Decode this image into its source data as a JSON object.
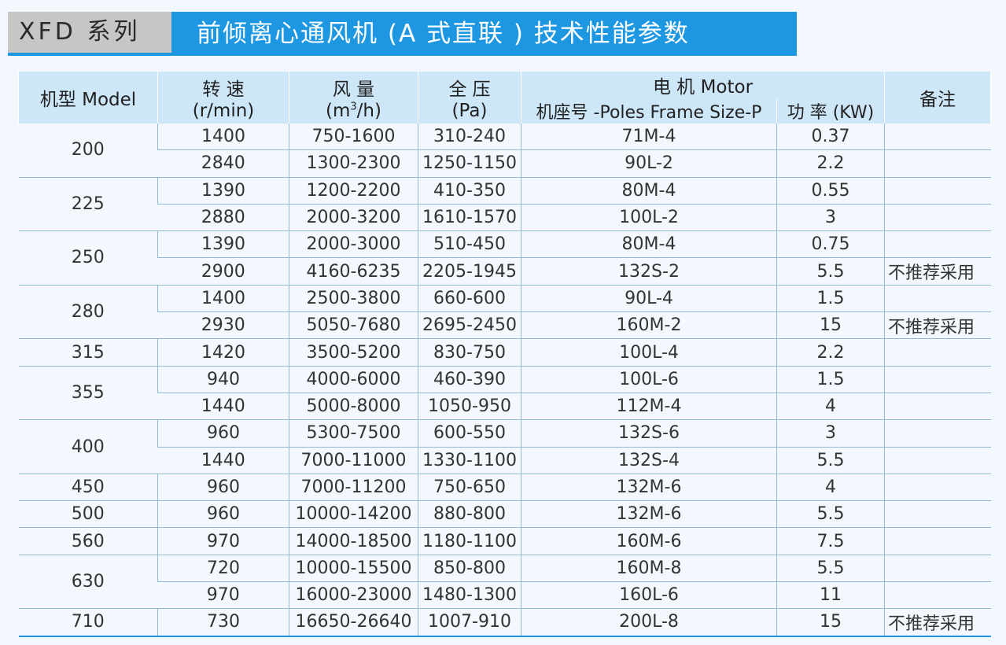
{
  "header": {
    "series": "XFD 系列",
    "title": "前倾离心通风机 (A 式直联 ) 技术性能参数"
  },
  "colors": {
    "accent": "#1e97e3",
    "header_bg": "#cde6f8",
    "series_bg": "#c6c6c6"
  },
  "table": {
    "headers": {
      "model": "机型 Model",
      "speed": "转 速",
      "speed_unit": "(r/min)",
      "flow": "风 量",
      "flow_unit_pre": "(m",
      "flow_unit_sup": "3",
      "flow_unit_post": "/h)",
      "pressure": "全 压",
      "pressure_unit": "(Pa)",
      "motor": "电 机 Motor",
      "frame": "机座号 -Poles Frame Size-P",
      "power": "功 率 (KW)",
      "note": "备注"
    },
    "groups": [
      {
        "model": "200",
        "rows": [
          {
            "speed": "1400",
            "flow": "750-1600",
            "pressure": "310-240",
            "frame": "71M-4",
            "power": "0.37",
            "note": ""
          },
          {
            "speed": "2840",
            "flow": "1300-2300",
            "pressure": "1250-1150",
            "frame": "90L-2",
            "power": "2.2",
            "note": ""
          }
        ]
      },
      {
        "model": "225",
        "rows": [
          {
            "speed": "1390",
            "flow": "1200-2200",
            "pressure": "410-350",
            "frame": "80M-4",
            "power": "0.55",
            "note": ""
          },
          {
            "speed": "2880",
            "flow": "2000-3200",
            "pressure": "1610-1570",
            "frame": "100L-2",
            "power": "3",
            "note": ""
          }
        ]
      },
      {
        "model": "250",
        "rows": [
          {
            "speed": "1390",
            "flow": "2000-3000",
            "pressure": "510-450",
            "frame": "80M-4",
            "power": "0.75",
            "note": ""
          },
          {
            "speed": "2900",
            "flow": "4160-6235",
            "pressure": "2205-1945",
            "frame": "132S-2",
            "power": "5.5",
            "note": "不推荐采用"
          }
        ]
      },
      {
        "model": "280",
        "rows": [
          {
            "speed": "1400",
            "flow": "2500-3800",
            "pressure": "660-600",
            "frame": "90L-4",
            "power": "1.5",
            "note": ""
          },
          {
            "speed": "2930",
            "flow": "5050-7680",
            "pressure": "2695-2450",
            "frame": "160M-2",
            "power": "15",
            "note": "不推荐采用"
          }
        ]
      },
      {
        "model": "315",
        "rows": [
          {
            "speed": "1420",
            "flow": "3500-5200",
            "pressure": "830-750",
            "frame": "100L-4",
            "power": "2.2",
            "note": ""
          }
        ]
      },
      {
        "model": "355",
        "rows": [
          {
            "speed": "940",
            "flow": "4000-6000",
            "pressure": "460-390",
            "frame": "100L-6",
            "power": "1.5",
            "note": ""
          },
          {
            "speed": "1440",
            "flow": "5000-8000",
            "pressure": "1050-950",
            "frame": "112M-4",
            "power": "4",
            "note": ""
          }
        ]
      },
      {
        "model": "400",
        "rows": [
          {
            "speed": "960",
            "flow": "5300-7500",
            "pressure": "600-550",
            "frame": "132S-6",
            "power": "3",
            "note": ""
          },
          {
            "speed": "1440",
            "flow": "7000-11000",
            "pressure": "1330-1100",
            "frame": "132S-4",
            "power": "5.5",
            "note": ""
          }
        ]
      },
      {
        "model": "450",
        "rows": [
          {
            "speed": "960",
            "flow": "7000-11200",
            "pressure": "750-650",
            "frame": "132M-6",
            "power": "4",
            "note": ""
          }
        ]
      },
      {
        "model": "500",
        "rows": [
          {
            "speed": "960",
            "flow": "10000-14200",
            "pressure": "880-800",
            "frame": "132M-6",
            "power": "5.5",
            "note": ""
          }
        ]
      },
      {
        "model": "560",
        "rows": [
          {
            "speed": "970",
            "flow": "14000-18500",
            "pressure": "1180-1100",
            "frame": "160M-6",
            "power": "7.5",
            "note": ""
          }
        ]
      },
      {
        "model": "630",
        "rows": [
          {
            "speed": "720",
            "flow": "10000-15500",
            "pressure": "850-800",
            "frame": "160M-8",
            "power": "5.5",
            "note": ""
          },
          {
            "speed": "970",
            "flow": "16000-23000",
            "pressure": "1480-1300",
            "frame": "160L-6",
            "power": "11",
            "note": ""
          }
        ]
      },
      {
        "model": "710",
        "rows": [
          {
            "speed": "730",
            "flow": "16650-26640",
            "pressure": "1007-910",
            "frame": "200L-8",
            "power": "15",
            "note": "不推荐采用"
          }
        ]
      }
    ]
  }
}
